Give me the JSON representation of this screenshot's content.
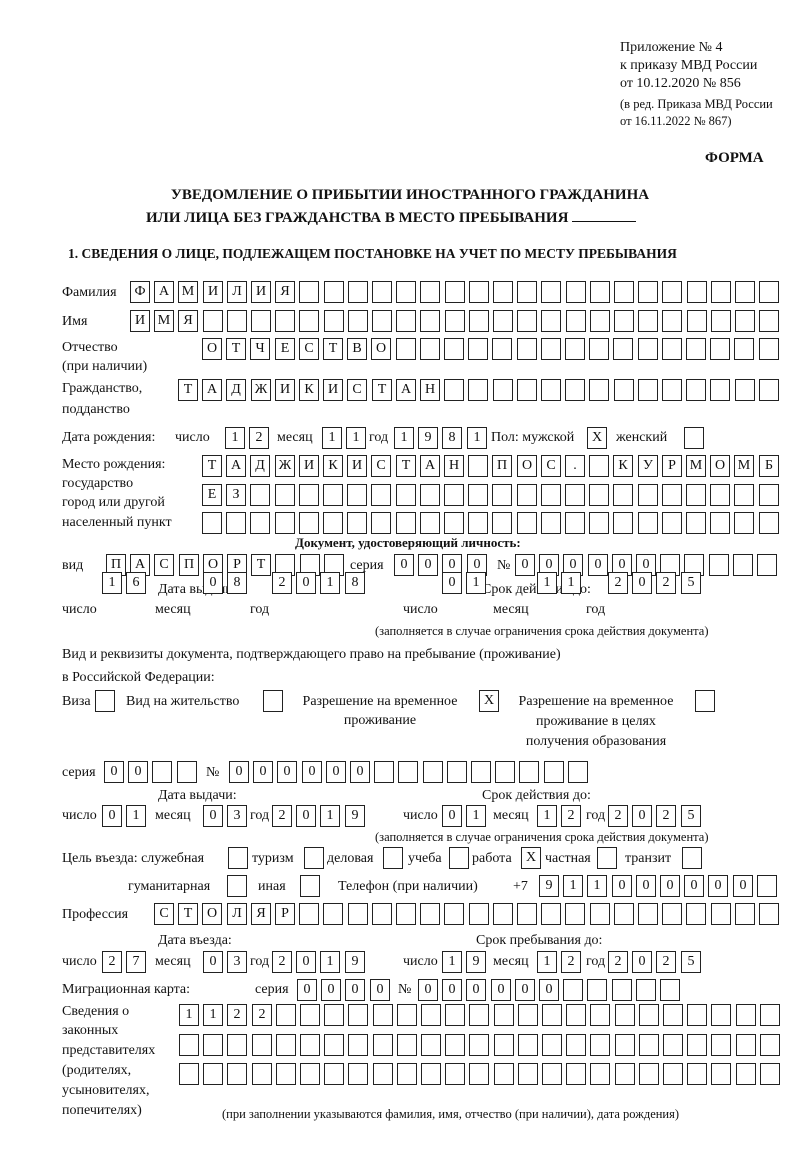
{
  "header": {
    "appendix": "Приложение № 4",
    "order": "к приказу МВД России",
    "order_date": "от 10.12.2020 № 856",
    "edition_1": "(в ред. Приказа МВД России",
    "edition_2": "от 16.11.2022 № 867)",
    "form_label": "ФОРМА"
  },
  "title": {
    "line1": "УВЕДОМЛЕНИЕ О ПРИБЫТИИ ИНОСТРАННОГО ГРАЖДАНИНА",
    "line2": "ИЛИ ЛИЦА БЕЗ ГРАЖДАНСТВА В МЕСТО ПРЕБЫВАНИЯ"
  },
  "section1": {
    "title": "1. СВЕДЕНИЯ О ЛИЦЕ, ПОДЛЕЖАЩЕМ ПОСТАНОВКЕ НА УЧЕТ ПО МЕСТУ ПРЕБЫВАНИЯ",
    "surname": {
      "label": "Фамилия",
      "value": "ФАМИЛИЯ"
    },
    "name": {
      "label": "Имя",
      "value": "ИМЯ"
    },
    "patronymic": {
      "label": "Отчество",
      "label2": "(при наличии)",
      "value": "ОТЧЕСТВО"
    },
    "citizenship": {
      "label": "Гражданство,",
      "label2": "подданство",
      "value": "ТАДЖИКИСТАН"
    },
    "birth": {
      "label": "Дата рождения:",
      "day_label": "число",
      "month_label": "месяц",
      "year_label": "год",
      "day": "12",
      "month": "11",
      "year": "1981",
      "sex_label": "Пол: мужской",
      "female_label": "женский",
      "male": "X",
      "female": ""
    },
    "birthplace": {
      "label1": "Место рождения:",
      "label2": "государство",
      "label3": "город или другой",
      "label4": "населенный пункт",
      "row1": "ТАДЖИКИСТАН ПОС. КУРМОМБ",
      "row2": "ЕЗ",
      "row3": ""
    },
    "id_doc": {
      "heading": "Документ, удостоверяющий личность:",
      "kind_label": "вид",
      "kind": "ПАСПОРТ",
      "series_label": "серия",
      "series": "0000",
      "number_label": "№",
      "number": "000000",
      "issue_label": "Дата выдачи:",
      "valid_label": "Срок действия до:",
      "day_label": "число",
      "month_label": "месяц",
      "year_label": "год",
      "issue_day": "16",
      "issue_month": "08",
      "issue_year": "2018",
      "valid_day": "01",
      "valid_month": "11",
      "valid_year": "2025",
      "note": "(заполняется в случае ограничения срока действия документа)"
    },
    "stay_doc": {
      "intro1": "Вид и реквизиты документа, подтверждающего право на пребывание (проживание)",
      "intro2": "в Российской Федерации:",
      "visa_label": "Виза",
      "visa": "",
      "residence_label": "Вид на жительство",
      "residence": "",
      "trp_label1": "Разрешение на временное",
      "trp_label2": "проживание",
      "trp": "X",
      "trp_edu_label1": "Разрешение на временное",
      "trp_edu_label2": "проживание в целях",
      "trp_edu_label3": "получения образования",
      "trp_edu": "",
      "series_label": "серия",
      "series": "00",
      "number_label": "№",
      "number": "000000",
      "issue_label": "Дата выдачи:",
      "valid_label": "Срок действия до:",
      "day_label": "число",
      "month_label": "месяц",
      "year_label": "год",
      "issue_day": "01",
      "issue_month": "03",
      "issue_year": "2019",
      "valid_day": "01",
      "valid_month": "12",
      "valid_year": "2025",
      "note": "(заполняется в случае ограничения срока действия документа)"
    },
    "purpose": {
      "label": "Цель въезда: служебная",
      "official": "",
      "tourism_label": "туризм",
      "tourism": "",
      "business_label": "деловая",
      "business": "",
      "study_label": "учеба",
      "study": "",
      "work_label": "работа",
      "work": "X",
      "private_label": "частная",
      "private": "",
      "transit_label": "транзит",
      "transit": "",
      "humanitarian_label": "гуманитарная",
      "humanitarian": "",
      "other_label": "иная",
      "other": ""
    },
    "phone": {
      "label": "Телефон (при наличии)",
      "prefix": "+7",
      "value": "911000000"
    },
    "profession": {
      "label": "Профессия",
      "value": "СТОЛЯР"
    },
    "entry": {
      "entry_label": "Дата въезда:",
      "stay_until_label": "Срок пребывания до:",
      "day_label": "число",
      "month_label": "месяц",
      "year_label": "год",
      "entry_day": "27",
      "entry_month": "03",
      "entry_year": "2019",
      "until_day": "19",
      "until_month": "12",
      "until_year": "2025"
    },
    "migration_card": {
      "label": "Миграционная карта:",
      "series_label": "серия",
      "series": "0000",
      "number_label": "№",
      "number": "000000"
    },
    "representatives": {
      "label1": "Сведения о",
      "label2": "законных",
      "label3": "представителях",
      "label4": "(родителях,",
      "label5": "усыновителях,",
      "label6": "попечителях)",
      "row1": "1122",
      "row2": "",
      "row3": "",
      "note": "(при заполнении указываются фамилия, имя, отчество (при наличии), дата рождения)"
    }
  }
}
